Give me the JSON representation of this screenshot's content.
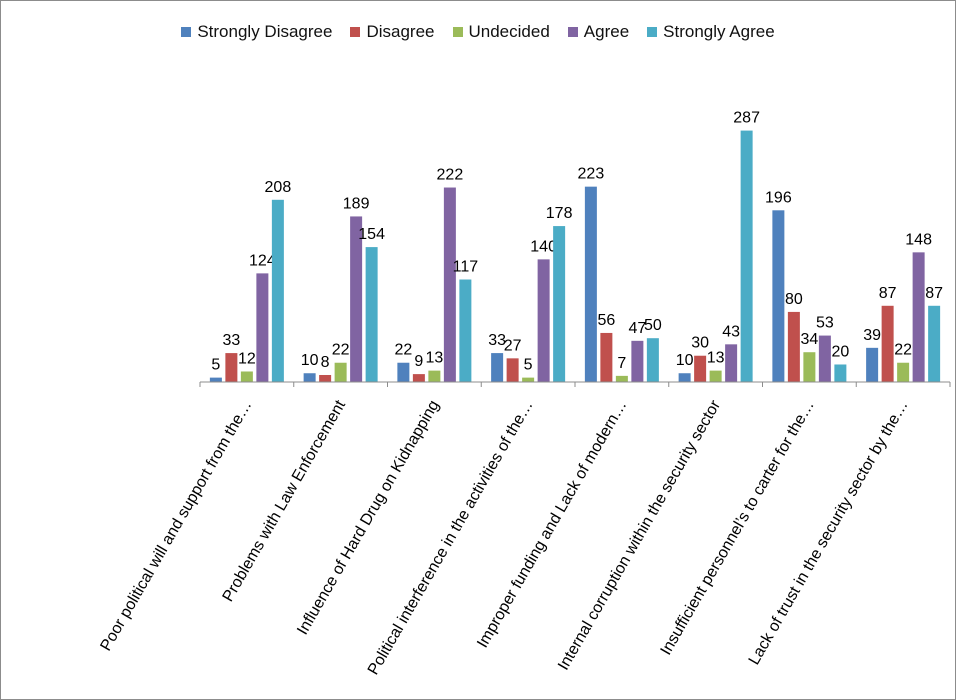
{
  "chart_data": {
    "type": "bar",
    "title": "",
    "xlabel": "",
    "ylabel": "",
    "ylim": [
      0,
      300
    ],
    "grid": false,
    "legend_position": "top",
    "categories": [
      "Poor political will and support from the…",
      "Problems with Law Enforcement",
      "Influence of Hard Drug on Kidnapping",
      "Political interference in the activities of the…",
      "Improper funding and Lack of modern…",
      "Internal corruption within the security sector",
      "Insufficient personnel’s to carter for the…",
      "Lack of trust in the security sector by the…"
    ],
    "series": [
      {
        "name": "Strongly Disagree",
        "color": "#4F81BD",
        "values": [
          5,
          10,
          22,
          33,
          223,
          10,
          196,
          39
        ]
      },
      {
        "name": "Disagree",
        "color": "#C0504D",
        "values": [
          33,
          8,
          9,
          27,
          56,
          30,
          80,
          87
        ]
      },
      {
        "name": "Undecided",
        "color": "#9BBB59",
        "values": [
          12,
          22,
          13,
          5,
          7,
          13,
          34,
          22
        ]
      },
      {
        "name": "Agree",
        "color": "#8064A2",
        "values": [
          124,
          189,
          222,
          140,
          47,
          43,
          53,
          148
        ]
      },
      {
        "name": "Strongly Agree",
        "color": "#4BACC6",
        "values": [
          208,
          154,
          117,
          178,
          50,
          287,
          20,
          87
        ]
      }
    ]
  }
}
